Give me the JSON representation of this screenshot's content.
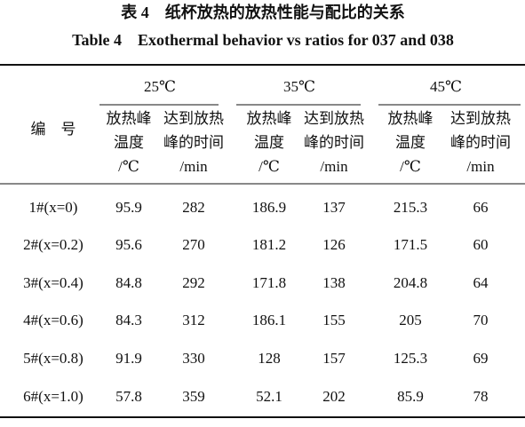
{
  "title_cn": "表 4　纸杯放热的放热性能与配比的关系",
  "title_en": "Table 4　Exothermal behavior vs ratios for 037 and 038",
  "table": {
    "corner": "编　号",
    "groups": [
      "25℃",
      "35℃",
      "45℃"
    ],
    "subheaders": [
      [
        "放热峰",
        "温度",
        "/℃"
      ],
      [
        "达到放热",
        "峰的时间",
        "/min"
      ],
      [
        "放热峰",
        "温度",
        "/℃"
      ],
      [
        "达到放热",
        "峰的时间",
        "/min"
      ],
      [
        "放热峰",
        "温度",
        "/℃"
      ],
      [
        "达到放热",
        "峰的时间",
        "/min"
      ]
    ],
    "rows": [
      {
        "label": "1#(x=0)",
        "values": [
          95.9,
          282,
          186.9,
          137,
          215.3,
          66
        ]
      },
      {
        "label": "2#(x=0.2)",
        "values": [
          95.6,
          270,
          181.2,
          126,
          171.5,
          60
        ]
      },
      {
        "label": "3#(x=0.4)",
        "values": [
          84.8,
          292,
          171.8,
          138,
          204.8,
          64
        ]
      },
      {
        "label": "4#(x=0.6)",
        "values": [
          84.3,
          312,
          186.1,
          155,
          205,
          70
        ]
      },
      {
        "label": "5#(x=0.8)",
        "values": [
          91.9,
          330,
          128,
          157,
          125.3,
          69
        ]
      },
      {
        "label": "6#(x=1.0)",
        "values": [
          57.8,
          359,
          52.1,
          202,
          85.9,
          78
        ]
      }
    ]
  }
}
